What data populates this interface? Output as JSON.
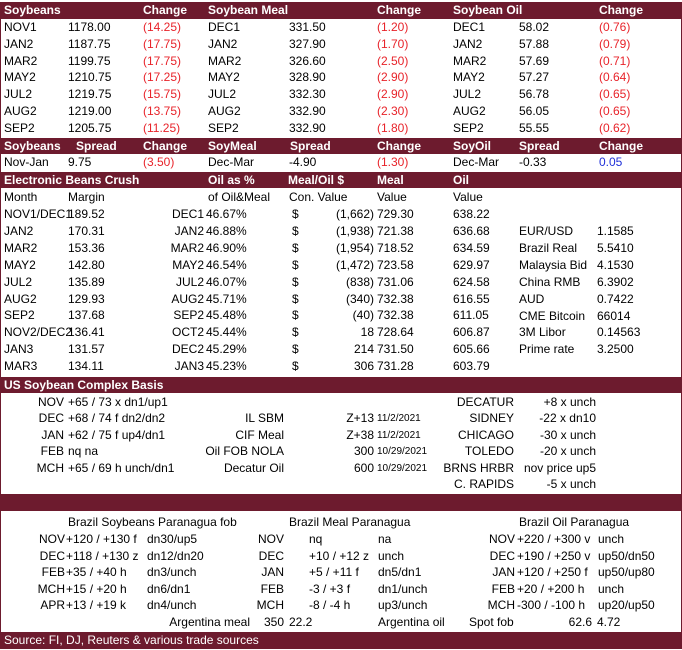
{
  "futures": {
    "headers": [
      "Soybeans",
      "Change",
      "Soybean Meal",
      "Change",
      "Soybean Oil",
      "Change"
    ],
    "rows": [
      [
        "NOV1",
        "1178.00",
        "(14.25)",
        "DEC1",
        "331.50",
        "(1.20)",
        "DEC1",
        "58.02",
        "(0.76)"
      ],
      [
        "JAN2",
        "1187.75",
        "(17.75)",
        "JAN2",
        "327.90",
        "(1.70)",
        "JAN2",
        "57.88",
        "(0.79)"
      ],
      [
        "MAR2",
        "1199.75",
        "(17.75)",
        "MAR2",
        "326.60",
        "(2.50)",
        "MAR2",
        "57.69",
        "(0.71)"
      ],
      [
        "MAY2",
        "1210.75",
        "(17.25)",
        "MAY2",
        "328.90",
        "(2.90)",
        "MAY2",
        "57.27",
        "(0.64)"
      ],
      [
        "JUL2",
        "1219.75",
        "(15.75)",
        "JUL2",
        "332.30",
        "(2.90)",
        "JUL2",
        "56.78",
        "(0.65)"
      ],
      [
        "AUG2",
        "1219.00",
        "(13.75)",
        "AUG2",
        "332.90",
        "(2.30)",
        "AUG2",
        "56.05",
        "(0.65)"
      ],
      [
        "SEP2",
        "1205.75",
        "(11.25)",
        "SEP2",
        "332.90",
        "(1.80)",
        "SEP2",
        "55.55",
        "(0.62)"
      ]
    ]
  },
  "spreads": {
    "headers": [
      "Soybeans",
      "Spread",
      "Change",
      "SoyMeal",
      "Spread",
      "Change",
      "SoyOil",
      "Spread",
      "Change"
    ],
    "row": [
      "Nov-Jan",
      "9.75",
      "(3.50)",
      "Dec-Mar",
      "-4.90",
      "(1.30)",
      "Dec-Mar",
      "-0.33",
      "0.05"
    ]
  },
  "crush": {
    "title": "Electronic Beans Crush",
    "head1": {
      "oil_pct": "Oil as %",
      "meal_oil": "Meal/Oil $",
      "meal": "Meal",
      "oil": "Oil"
    },
    "head2": {
      "month": "Month",
      "margin": "Margin",
      "oil_meal": "of Oil&Meal",
      "con_value": "Con. Value",
      "value1": "Value",
      "value2": "Value"
    },
    "rows": [
      [
        "NOV1/DEC1",
        "189.52",
        "DEC1",
        "46.67%",
        "$",
        "(1,662)",
        "729.30",
        "638.22"
      ],
      [
        "JAN2",
        "170.31",
        "JAN2",
        "46.88%",
        "$",
        "(1,938)",
        "721.38",
        "636.68"
      ],
      [
        "MAR2",
        "153.36",
        "MAR2",
        "46.90%",
        "$",
        "(1,954)",
        "718.52",
        "634.59"
      ],
      [
        "MAY2",
        "142.80",
        "MAY2",
        "46.54%",
        "$",
        "(1,472)",
        "723.58",
        "629.97"
      ],
      [
        "JUL2",
        "135.89",
        "JUL2",
        "46.07%",
        "$",
        "(838)",
        "731.06",
        "624.58"
      ],
      [
        "AUG2",
        "129.93",
        "AUG2",
        "45.71%",
        "$",
        "(340)",
        "732.38",
        "616.55"
      ],
      [
        "SEP2",
        "137.68",
        "SEP2",
        "45.48%",
        "$",
        "(40)",
        "732.38",
        "611.05"
      ],
      [
        "NOV2/DEC2",
        "136.41",
        "OCT2",
        "45.44%",
        "$",
        "18",
        "728.64",
        "606.87"
      ],
      [
        "JAN3",
        "131.57",
        "DEC2",
        "45.29%",
        "$",
        "214",
        "731.50",
        "605.66"
      ],
      [
        "MAR3",
        "134.11",
        "JAN3",
        "45.23%",
        "$",
        "306",
        "731.28",
        "603.79"
      ]
    ],
    "markets": [
      [
        "EUR/USD",
        "1.1585"
      ],
      [
        "Brazil Real",
        "5.5410"
      ],
      [
        "Malaysia Bid",
        "4.1530"
      ],
      [
        "China RMB",
        "6.3902"
      ],
      [
        "AUD",
        "0.7422"
      ],
      [
        "CME Bitcoin",
        "66014"
      ],
      [
        "3M Libor",
        "0.14563"
      ],
      [
        "Prime rate",
        "3.2500"
      ]
    ]
  },
  "basis": {
    "title": "US Soybean Complex Basis",
    "rows": [
      [
        "NOV",
        "+65 / 73 x dn1/up1",
        "",
        "",
        "",
        "DECATUR",
        "+8 x unch"
      ],
      [
        "DEC",
        "+68 / 74 f dn2/dn2",
        "IL SBM",
        "Z+13",
        "11/2/2021",
        "SIDNEY",
        "-22 x dn10"
      ],
      [
        "JAN",
        "+62 / 75 f up4/dn1",
        "CIF Meal",
        "Z+38",
        "11/2/2021",
        "CHICAGO",
        "-30 x unch"
      ],
      [
        "FEB",
        "nq  na",
        "Oil FOB NOLA",
        "300",
        "10/29/2021",
        "TOLEDO",
        "-20 x unch"
      ],
      [
        "MCH",
        "+65 / 69 h unch/dn1",
        "Decatur Oil",
        "600",
        "10/29/2021",
        "BRNS HRBR",
        "nov price up5"
      ],
      [
        "",
        "",
        "",
        "",
        "",
        "C. RAPIDS",
        "-5 x unch"
      ]
    ]
  },
  "brazil": {
    "titles": [
      "Brazil Soybeans Paranagua fob",
      "Brazil Meal Paranagua",
      "Brazil Oil Paranagua"
    ],
    "rows": [
      [
        "NOV",
        "+120 / +130 f",
        "dn30/up5",
        "NOV",
        "nq",
        "na",
        "NOV",
        "+220 / +300 v",
        "unch"
      ],
      [
        "DEC",
        "+118 / +130 z",
        "dn12/dn20",
        "DEC",
        "+10 / +12 z",
        "unch",
        "DEC",
        "+190 / +250 v",
        "up50/dn50"
      ],
      [
        "FEB",
        "+35 / +40 h",
        "dn3/unch",
        "JAN",
        "+5 / +11 f",
        "dn5/dn1",
        "JAN",
        "+120 / +250 f",
        "up50/up80"
      ],
      [
        "MCH",
        "+15 / +20 h",
        "dn6/dn1",
        "FEB",
        "-3 / +3 f",
        "dn1/unch",
        "FEB",
        "+20 / +200 h",
        "unch"
      ],
      [
        "APR",
        "+13 / +19 k",
        "dn4/unch",
        "MCH",
        "-8 / -4 h",
        "up3/unch",
        "MCH",
        "-300 / -100 h",
        "up20/up50"
      ]
    ],
    "footer": [
      "Argentina meal",
      "350",
      "22.2",
      "Argentina oil",
      "Spot fob",
      "62.6",
      "4.72"
    ]
  },
  "source": "Source: FI, DJ, Reuters & various trade sources"
}
